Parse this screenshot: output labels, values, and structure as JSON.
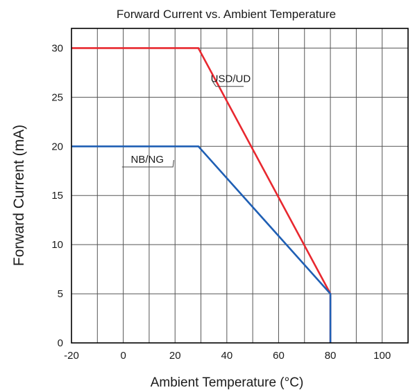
{
  "chart_data": {
    "type": "line",
    "title": "Forward Current vs. Ambient Temperature",
    "xlabel": "Ambient Temperature (°C)",
    "ylabel": "Forward Current (mA)",
    "xlim": [
      -20,
      110
    ],
    "ylim": [
      0,
      32
    ],
    "x_ticks": [
      -20,
      0,
      20,
      40,
      60,
      80,
      100
    ],
    "y_ticks": [
      0,
      5,
      10,
      15,
      20,
      25,
      30
    ],
    "x_tick_labels": [
      "-20",
      "0",
      "20",
      "40",
      "60",
      "80",
      "100"
    ],
    "y_tick_labels": [
      "0",
      "5",
      "10",
      "15",
      "20",
      "25",
      "30"
    ],
    "grid": true,
    "series": [
      {
        "name": "USD/UD",
        "color": "#e8282f",
        "points": [
          [
            -20,
            30
          ],
          [
            29,
            30
          ],
          [
            80,
            5
          ],
          [
            80,
            0
          ]
        ]
      },
      {
        "name": "NB/NG",
        "color": "#1f5fb4",
        "points": [
          [
            -20,
            20
          ],
          [
            29,
            20
          ],
          [
            80,
            5
          ],
          [
            80,
            0
          ]
        ]
      }
    ]
  }
}
